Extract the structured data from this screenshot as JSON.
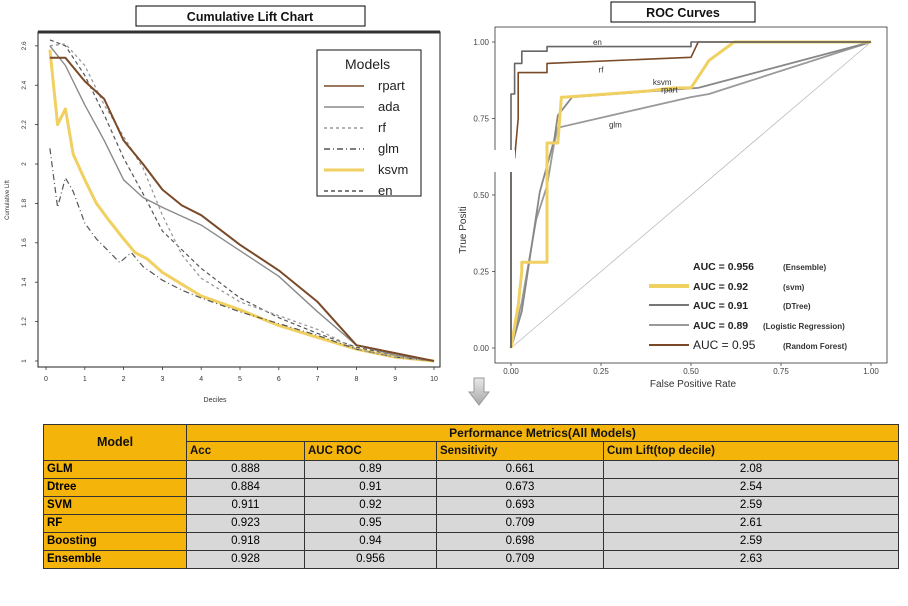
{
  "lift_chart": {
    "title": "Cumulative Lift Chart",
    "xlabel": "Deciles",
    "ylabel": "Cumulative Lift",
    "legend_title": "Models",
    "legend_items": [
      {
        "label": "rpart",
        "color": "#7a4a28",
        "dash": ""
      },
      {
        "label": "ada",
        "color": "#8a8a8a",
        "dash": ""
      },
      {
        "label": "rf",
        "color": "#999999",
        "dash": "3,3"
      },
      {
        "label": "glm",
        "color": "#555555",
        "dash": "6,3,1,3"
      },
      {
        "label": "ksvm",
        "color": "#f0d060",
        "dash": ""
      },
      {
        "label": "en",
        "color": "#555555",
        "dash": "4,3"
      }
    ]
  },
  "roc_chart": {
    "title": "ROC Curves",
    "xlabel": "False Positive Rate",
    "ylabel": "True Positi",
    "curve_labels": [
      "en",
      "rf",
      "ksvm",
      "rpart",
      "glm"
    ],
    "auc_legend": [
      {
        "prefix": "AUC = ",
        "value": "0.956",
        "note": "(Ensemble)",
        "color": "#ffffff"
      },
      {
        "prefix": "AUC = ",
        "value": "0.92",
        "note": "(svm)",
        "color": "#f0d060"
      },
      {
        "prefix": "AUC = ",
        "value": "0.91",
        "note": "(DTree)",
        "color": "#777777"
      },
      {
        "prefix": "AUC = ",
        "value": "0.89",
        "note": "(Logistic  Regression)",
        "color": "#999999"
      },
      {
        "prefix": "AUC = ",
        "value": "0.95",
        "note": "(Random Forest)",
        "color": "#7a4a28"
      }
    ]
  },
  "chart_data": [
    {
      "type": "line",
      "title": "Cumulative Lift Chart",
      "xlabel": "Deciles",
      "ylabel": "Cumulative Lift",
      "xlim": [
        0,
        10
      ],
      "ylim": [
        1,
        2.65
      ],
      "x_ticks": [
        0,
        1,
        2,
        3,
        4,
        5,
        6,
        7,
        8,
        9,
        10
      ],
      "y_ticks": [
        1,
        1.2,
        1.4,
        1.6,
        1.8,
        2,
        2.2,
        2.4,
        2.6
      ],
      "legend_title": "Models",
      "legend_position": "top-right",
      "series": [
        {
          "name": "rpart",
          "color": "#7a4a28",
          "dash": "",
          "width": 2,
          "x": [
            0.1,
            0.5,
            1,
            1.5,
            2,
            2.5,
            3,
            3.5,
            4,
            5,
            6,
            7,
            8,
            9,
            10
          ],
          "y": [
            2.54,
            2.54,
            2.42,
            2.33,
            2.12,
            2.0,
            1.87,
            1.79,
            1.74,
            1.59,
            1.46,
            1.3,
            1.08,
            1.04,
            1.0
          ]
        },
        {
          "name": "ada",
          "color": "#8a8a8a",
          "dash": "",
          "width": 1.4,
          "x": [
            0.1,
            0.5,
            1,
            1.5,
            2,
            2.5,
            3,
            4,
            5,
            6,
            7,
            8,
            9,
            10
          ],
          "y": [
            2.6,
            2.5,
            2.3,
            2.12,
            1.92,
            1.83,
            1.78,
            1.69,
            1.56,
            1.43,
            1.25,
            1.08,
            1.03,
            1.0
          ]
        },
        {
          "name": "rf",
          "color": "#9a9a9a",
          "dash": "3,3",
          "width": 1.3,
          "x": [
            0.1,
            0.5,
            1,
            1.5,
            2,
            2.5,
            3,
            3.5,
            4,
            5,
            6,
            7,
            8,
            9,
            10
          ],
          "y": [
            2.6,
            2.61,
            2.5,
            2.3,
            2.14,
            1.98,
            1.74,
            1.54,
            1.42,
            1.3,
            1.23,
            1.16,
            1.06,
            1.02,
            1.0
          ]
        },
        {
          "name": "glm",
          "color": "#555555",
          "dash": "6,3,1,3",
          "width": 1.2,
          "x": [
            0.1,
            0.3,
            0.5,
            0.7,
            1,
            1.3,
            1.6,
            1.9,
            2.2,
            2.5,
            3,
            3.5,
            4,
            5,
            6,
            7,
            8,
            9,
            10
          ],
          "y": [
            2.08,
            1.78,
            1.93,
            1.86,
            1.7,
            1.62,
            1.56,
            1.5,
            1.55,
            1.48,
            1.41,
            1.36,
            1.32,
            1.25,
            1.19,
            1.13,
            1.06,
            1.02,
            1.0
          ]
        },
        {
          "name": "ksvm",
          "color": "#f0d060",
          "dash": "",
          "width": 3,
          "x": [
            0.1,
            0.3,
            0.5,
            0.7,
            1,
            1.3,
            1.6,
            2,
            2.3,
            2.6,
            3,
            3.5,
            4,
            5,
            6,
            7,
            8,
            9,
            10
          ],
          "y": [
            2.58,
            2.2,
            2.28,
            2.05,
            1.92,
            1.8,
            1.72,
            1.62,
            1.55,
            1.52,
            1.45,
            1.39,
            1.33,
            1.26,
            1.18,
            1.12,
            1.06,
            1.02,
            1.0
          ]
        },
        {
          "name": "en",
          "color": "#555555",
          "dash": "4,3",
          "width": 1.2,
          "x": [
            0.1,
            0.5,
            1,
            1.5,
            2,
            2.5,
            3,
            4,
            5,
            6,
            7,
            8,
            9,
            10
          ],
          "y": [
            2.63,
            2.6,
            2.45,
            2.25,
            2.03,
            1.85,
            1.66,
            1.47,
            1.32,
            1.22,
            1.14,
            1.07,
            1.03,
            1.0
          ]
        }
      ]
    },
    {
      "type": "line",
      "title": "ROC Curves",
      "xlabel": "False Positive Rate",
      "ylabel": "True Positi",
      "xlim": [
        0,
        1
      ],
      "ylim": [
        0,
        1
      ],
      "x_ticks": [
        0,
        0.25,
        0.5,
        0.75,
        1
      ],
      "y_ticks": [
        0,
        0.25,
        0.5,
        0.75,
        1
      ],
      "series": [
        {
          "name": "en",
          "color": "#666666",
          "width": 1.6,
          "x": [
            0,
            0,
            0.01,
            0.01,
            0.03,
            0.03,
            0.1,
            0.1,
            0.5,
            0.5,
            0.52,
            1
          ],
          "y": [
            0,
            0.83,
            0.83,
            0.93,
            0.93,
            0.97,
            0.97,
            0.985,
            0.985,
            1,
            1,
            1
          ]
        },
        {
          "name": "rf",
          "color": "#7a4a28",
          "width": 1.6,
          "x": [
            0,
            0,
            0.01,
            0.02,
            0.02,
            0.1,
            0.1,
            0.5,
            0.52,
            1
          ],
          "y": [
            0,
            0.62,
            0.62,
            0.75,
            0.9,
            0.9,
            0.93,
            0.95,
            1,
            1
          ]
        },
        {
          "name": "ksvm",
          "color": "#f0d060",
          "width": 3,
          "x": [
            0,
            0.02,
            0.03,
            0.03,
            0.1,
            0.1,
            0.13,
            0.14,
            0.15,
            0.38,
            0.45,
            0.5,
            0.55,
            0.62,
            1
          ],
          "y": [
            0,
            0.14,
            0.25,
            0.28,
            0.28,
            0.67,
            0.67,
            0.82,
            0.82,
            0.84,
            0.85,
            0.85,
            0.94,
            1,
            1
          ]
        },
        {
          "name": "rpart",
          "color": "#888888",
          "width": 1.8,
          "x": [
            0,
            0.03,
            0.08,
            0.12,
            0.13,
            0.17,
            0.52,
            1
          ],
          "y": [
            0,
            0.12,
            0.51,
            0.68,
            0.76,
            0.82,
            0.85,
            1
          ]
        },
        {
          "name": "glm",
          "color": "#9a9a9a",
          "width": 1.8,
          "x": [
            0,
            0.03,
            0.07,
            0.1,
            0.12,
            0.13,
            0.5,
            0.55,
            1
          ],
          "y": [
            0,
            0.15,
            0.42,
            0.53,
            0.67,
            0.72,
            0.82,
            0.83,
            1
          ]
        }
      ]
    },
    {
      "type": "table",
      "title": "Performance Metrics(All Models)",
      "columns": [
        "Model",
        "Acc",
        "AUC ROC",
        "Sensitivity",
        "Cum Lift(top decile)"
      ],
      "rows": [
        [
          "GLM",
          "0.888",
          "0.89",
          "0.661",
          "2.08"
        ],
        [
          "Dtree",
          "0.884",
          "0.91",
          "0.673",
          "2.54"
        ],
        [
          "SVM",
          "0.911",
          "0.92",
          "0.693",
          "2.59"
        ],
        [
          "RF",
          "0.923",
          "0.95",
          "0.709",
          "2.61"
        ],
        [
          "Boosting",
          "0.918",
          "0.94",
          "0.698",
          "2.59"
        ],
        [
          "Ensemble",
          "0.928",
          "0.956",
          "0.709",
          "2.63"
        ]
      ]
    }
  ],
  "table": {
    "model_header": "Model",
    "group_header": "Performance Metrics(All Models)",
    "sub_headers": [
      "Acc",
      "AUC ROC",
      "Sensitivity",
      "Cum Lift(top decile)"
    ],
    "rows": [
      {
        "model": "GLM",
        "acc": "0.888",
        "auc": "0.89",
        "sens": "0.661",
        "lift": "2.08"
      },
      {
        "model": "Dtree",
        "acc": "0.884",
        "auc": "0.91",
        "sens": "0.673",
        "lift": "2.54"
      },
      {
        "model": "SVM",
        "acc": "0.911",
        "auc": "0.92",
        "sens": "0.693",
        "lift": "2.59"
      },
      {
        "model": "RF",
        "acc": "0.923",
        "auc": "0.95",
        "sens": "0.709",
        "lift": "2.61"
      },
      {
        "model": "Boosting",
        "acc": "0.918",
        "auc": "0.94",
        "sens": "0.698",
        "lift": "2.59"
      },
      {
        "model": "Ensemble",
        "acc": "0.928",
        "auc": "0.956",
        "sens": "0.709",
        "lift": "2.63"
      }
    ]
  }
}
